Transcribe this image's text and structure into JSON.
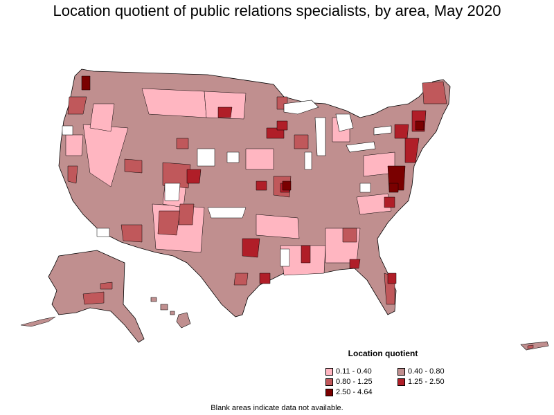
{
  "title": "Location quotient of public relations specialists, by area, May 2020",
  "legend": {
    "title": "Location quotient",
    "items": [
      {
        "label": "0.11 - 0.40",
        "color": "#ffb6c1"
      },
      {
        "label": "0.40 - 0.80",
        "color": "#c08f8f"
      },
      {
        "label": "0.80 - 1.25",
        "color": "#c0585b"
      },
      {
        "label": "1.25 - 2.50",
        "color": "#b01e28"
      },
      {
        "label": "2.50 - 4.64",
        "color": "#7a0000"
      }
    ]
  },
  "note": "Blank areas indicate data not available.",
  "colors": {
    "outline": "#000000",
    "no_data": "#ffffff"
  }
}
